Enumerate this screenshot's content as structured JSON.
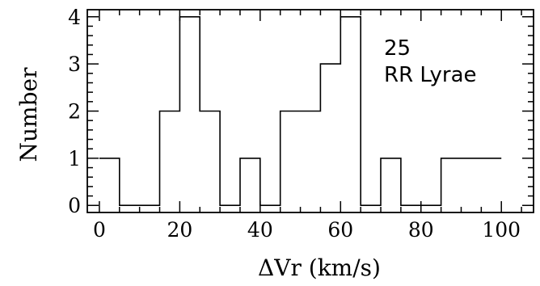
{
  "chart_data": {
    "type": "bar",
    "subtype": "histogram-step",
    "xlabel": "ΔVr (km/s)",
    "ylabel": "Number",
    "xlim": [
      -3,
      108
    ],
    "ylim": [
      -0.15,
      4.15
    ],
    "xticks": [
      0,
      20,
      40,
      60,
      80,
      100
    ],
    "yticks": [
      0,
      1,
      2,
      3,
      4
    ],
    "bin_width": 5,
    "bins": [
      0,
      5,
      10,
      15,
      20,
      25,
      30,
      35,
      40,
      45,
      50,
      55,
      60,
      65,
      70,
      75,
      80,
      85,
      90,
      95,
      100
    ],
    "counts": [
      1,
      0,
      0,
      2,
      4,
      2,
      0,
      1,
      0,
      2,
      2,
      3,
      4,
      0,
      1,
      0,
      0,
      1,
      1,
      1
    ],
    "annotations": [
      "25",
      "RR Lyrae"
    ],
    "grid": false
  }
}
